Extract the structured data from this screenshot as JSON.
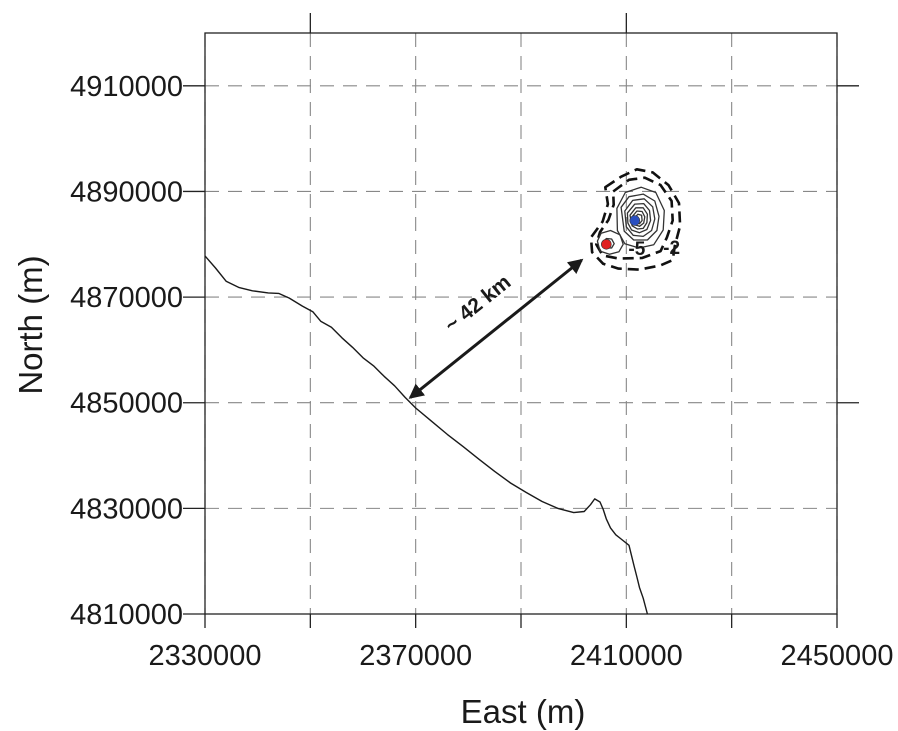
{
  "chart_data": {
    "type": "map-contour",
    "xlabel": "East (m)",
    "ylabel": "North (m)",
    "xlim": [
      2330000,
      2450000
    ],
    "ylim": [
      4810000,
      4920000
    ],
    "x_ticks": [
      2330000,
      2370000,
      2410000,
      2450000
    ],
    "x_tick_labels": [
      "2330000",
      "2370000",
      "2410000",
      "2450000"
    ],
    "y_ticks": [
      4810000,
      4830000,
      4850000,
      4870000,
      4890000,
      4910000
    ],
    "y_tick_labels": [
      "4810000",
      "4830000",
      "4850000",
      "4870000",
      "4890000",
      "4910000"
    ],
    "grid_x": [
      2330000,
      2350000,
      2370000,
      2390000,
      2410000,
      2430000,
      2450000
    ],
    "grid_y": [
      4810000,
      4830000,
      4850000,
      4870000,
      4890000,
      4910000
    ],
    "grid": true,
    "coastline": [
      [
        2330000,
        4877800
      ],
      [
        2332000,
        4875500
      ],
      [
        2334000,
        4873000
      ],
      [
        2336500,
        4871800
      ],
      [
        2339000,
        4871200
      ],
      [
        2342000,
        4870800
      ],
      [
        2344000,
        4870700
      ],
      [
        2346000,
        4869800
      ],
      [
        2348500,
        4868300
      ],
      [
        2350500,
        4867200
      ],
      [
        2351500,
        4866000
      ],
      [
        2352000,
        4865400
      ],
      [
        2354000,
        4864300
      ],
      [
        2356000,
        4862300
      ],
      [
        2358000,
        4860500
      ],
      [
        2360000,
        4858500
      ],
      [
        2362000,
        4857000
      ],
      [
        2364000,
        4855000
      ],
      [
        2366000,
        4853200
      ],
      [
        2368000,
        4851000
      ],
      [
        2370000,
        4849000
      ],
      [
        2373000,
        4846500
      ],
      [
        2376000,
        4844000
      ],
      [
        2379000,
        4841700
      ],
      [
        2382000,
        4839300
      ],
      [
        2385000,
        4837000
      ],
      [
        2388000,
        4834800
      ],
      [
        2391000,
        4833000
      ],
      [
        2394000,
        4831300
      ],
      [
        2397000,
        4830000
      ],
      [
        2400000,
        4829200
      ],
      [
        2402000,
        4829400
      ],
      [
        2403200,
        4830700
      ],
      [
        2404000,
        4831800
      ],
      [
        2405000,
        4831200
      ],
      [
        2405600,
        4829800
      ],
      [
        2406200,
        4828000
      ],
      [
        2407000,
        4826300
      ],
      [
        2408000,
        4825000
      ],
      [
        2409000,
        4824200
      ],
      [
        2410500,
        4823000
      ],
      [
        2411000,
        4821000
      ],
      [
        2411500,
        4819000
      ],
      [
        2412000,
        4817000
      ],
      [
        2412500,
        4815000
      ],
      [
        2413200,
        4813000
      ],
      [
        2414000,
        4810000
      ]
    ],
    "points": [
      {
        "x": 2406200,
        "y": 4880000,
        "color": "#e02020"
      },
      {
        "x": 2411600,
        "y": 4884500,
        "color": "#2a4fc0"
      }
    ],
    "contours": [
      {
        "level": -2,
        "style": "dashed",
        "path": [
          [
            2406000,
            4890800
          ],
          [
            2409000,
            4892800
          ],
          [
            2412000,
            4894200
          ],
          [
            2415000,
            4893600
          ],
          [
            2418000,
            4891200
          ],
          [
            2420000,
            4887800
          ],
          [
            2420200,
            4883500
          ],
          [
            2419200,
            4879700
          ],
          [
            2418800,
            4877000
          ],
          [
            2416500,
            4876000
          ],
          [
            2412500,
            4875200
          ],
          [
            2408500,
            4875400
          ],
          [
            2405600,
            4876300
          ],
          [
            2403500,
            4878500
          ],
          [
            2403300,
            4881300
          ],
          [
            2405500,
            4884300
          ],
          [
            2406500,
            4887600
          ],
          [
            2406000,
            4890800
          ]
        ]
      },
      {
        "level": -5,
        "style": "dashed",
        "path": [
          [
            2407500,
            4890000
          ],
          [
            2410500,
            4892200
          ],
          [
            2413500,
            4892600
          ],
          [
            2416500,
            4891200
          ],
          [
            2418600,
            4888200
          ],
          [
            2418800,
            4884500
          ],
          [
            2417700,
            4881300
          ],
          [
            2416500,
            4878700
          ],
          [
            2413000,
            4877400
          ],
          [
            2408500,
            4877300
          ],
          [
            2405500,
            4877900
          ],
          [
            2404300,
            4880000
          ],
          [
            2405000,
            4882300
          ],
          [
            2406600,
            4884600
          ],
          [
            2407600,
            4887500
          ],
          [
            2407500,
            4890000
          ]
        ]
      },
      {
        "level": null,
        "style": "solid",
        "path": [
          [
            2408200,
            4886800
          ],
          [
            2409800,
            4889800
          ],
          [
            2412800,
            4890800
          ],
          [
            2415600,
            4889800
          ],
          [
            2417200,
            4886400
          ],
          [
            2417000,
            4882700
          ],
          [
            2415200,
            4879900
          ],
          [
            2412400,
            4879300
          ],
          [
            2409700,
            4880100
          ],
          [
            2408300,
            4882600
          ],
          [
            2408200,
            4886800
          ]
        ]
      },
      {
        "level": null,
        "style": "solid",
        "path": [
          [
            2409000,
            4887000
          ],
          [
            2410500,
            4889000
          ],
          [
            2413200,
            4889500
          ],
          [
            2415400,
            4888200
          ],
          [
            2416200,
            4885300
          ],
          [
            2415800,
            4882600
          ],
          [
            2414000,
            4880800
          ],
          [
            2411400,
            4880800
          ],
          [
            2409600,
            4882500
          ],
          [
            2409000,
            4887000
          ]
        ]
      },
      {
        "level": null,
        "style": "solid",
        "path": [
          [
            2409700,
            4886300
          ],
          [
            2411200,
            4888300
          ],
          [
            2413400,
            4888600
          ],
          [
            2415000,
            4887100
          ],
          [
            2415400,
            4884800
          ],
          [
            2414800,
            4882600
          ],
          [
            2413200,
            4881500
          ],
          [
            2411300,
            4881700
          ],
          [
            2410000,
            4883300
          ],
          [
            2409700,
            4886300
          ]
        ]
      },
      {
        "level": null,
        "style": "solid",
        "path": [
          [
            2410200,
            4885900
          ],
          [
            2411600,
            4887600
          ],
          [
            2413300,
            4887700
          ],
          [
            2414400,
            4886400
          ],
          [
            2414600,
            4884500
          ],
          [
            2413900,
            4882800
          ],
          [
            2412500,
            4882200
          ],
          [
            2411000,
            4882700
          ],
          [
            2410300,
            4884000
          ],
          [
            2410200,
            4885900
          ]
        ]
      },
      {
        "level": null,
        "style": "solid",
        "path": [
          [
            2410700,
            4885500
          ],
          [
            2411800,
            4886900
          ],
          [
            2413200,
            4886900
          ],
          [
            2414000,
            4885700
          ],
          [
            2413900,
            4884100
          ],
          [
            2413200,
            4883000
          ],
          [
            2412100,
            4882900
          ],
          [
            2411100,
            4883500
          ],
          [
            2410700,
            4885500
          ]
        ]
      },
      {
        "level": null,
        "style": "solid",
        "path": [
          [
            2411100,
            4885200
          ],
          [
            2412000,
            4886300
          ],
          [
            2413000,
            4886200
          ],
          [
            2413500,
            4885200
          ],
          [
            2413300,
            4884000
          ],
          [
            2412500,
            4883400
          ],
          [
            2411600,
            4883700
          ],
          [
            2411100,
            4885200
          ]
        ]
      },
      {
        "level": null,
        "style": "solid",
        "path": [
          [
            2411500,
            4884900
          ],
          [
            2412200,
            4885700
          ],
          [
            2412900,
            4885500
          ],
          [
            2413000,
            4884500
          ],
          [
            2412500,
            4883900
          ],
          [
            2411800,
            4884100
          ],
          [
            2411500,
            4884900
          ]
        ]
      },
      {
        "level": null,
        "style": "solid",
        "path": [
          [
            2404500,
            4880600
          ],
          [
            2405200,
            4882100
          ],
          [
            2407000,
            4882600
          ],
          [
            2408800,
            4881800
          ],
          [
            2409400,
            4880000
          ],
          [
            2408600,
            4878600
          ],
          [
            2406800,
            4878100
          ],
          [
            2405000,
            4878700
          ],
          [
            2404500,
            4880600
          ]
        ]
      },
      {
        "level": null,
        "style": "solid",
        "path": [
          [
            2405500,
            4880200
          ],
          [
            2406200,
            4881100
          ],
          [
            2407200,
            4881000
          ],
          [
            2407700,
            4880100
          ],
          [
            2407200,
            4879300
          ],
          [
            2406200,
            4879300
          ],
          [
            2405500,
            4880200
          ]
        ]
      }
    ],
    "contour_labels": [
      {
        "text": "-5",
        "x": 2412000,
        "y": 4878000
      },
      {
        "text": "-2",
        "x": 2418600,
        "y": 4878200
      }
    ],
    "annotations": [
      {
        "text": "~ 42 km",
        "type": "double-arrow",
        "from": [
          2369000,
          4851000
        ],
        "to": [
          2401500,
          4877000
        ]
      }
    ]
  }
}
